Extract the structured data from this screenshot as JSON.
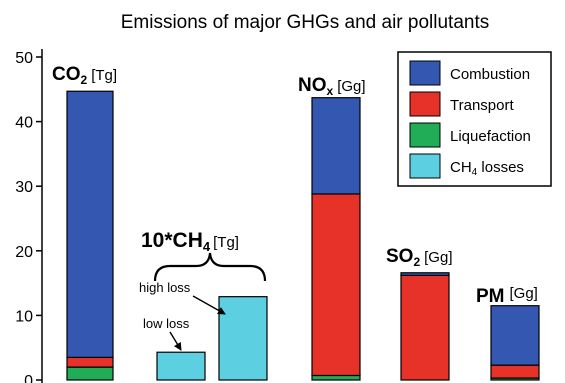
{
  "chart_data": {
    "type": "bar",
    "stacked": true,
    "title": "Emissions of major GHGs and air pollutants",
    "xlabel": "",
    "ylabel": "",
    "ylim": [
      0,
      50
    ],
    "yticks": [
      "0",
      "10",
      "20",
      "30",
      "40",
      "50"
    ],
    "grid": false,
    "legend_position": "top-right",
    "series": [
      {
        "name": "Combustion",
        "color": "#3457b1"
      },
      {
        "name": "Transport",
        "color": "#e63228"
      },
      {
        "name": "Liquefaction",
        "color": "#21ad57"
      },
      {
        "name": "CH4 losses",
        "color": "#5ccfe0"
      }
    ],
    "bars": [
      {
        "id": "co2",
        "segments": [
          {
            "series": "Liquefaction",
            "value": 2.0
          },
          {
            "series": "Transport",
            "value": 1.5
          },
          {
            "series": "Combustion",
            "value": 41.2
          }
        ]
      },
      {
        "id": "ch4-low",
        "segments": [
          {
            "series": "CH4 losses",
            "value": 4.3
          }
        ]
      },
      {
        "id": "ch4-high",
        "segments": [
          {
            "series": "CH4 losses",
            "value": 12.9
          }
        ]
      },
      {
        "id": "nox",
        "segments": [
          {
            "series": "Liquefaction",
            "value": 0.7
          },
          {
            "series": "Transport",
            "value": 28.1
          },
          {
            "series": "Combustion",
            "value": 14.9
          }
        ]
      },
      {
        "id": "so2",
        "segments": [
          {
            "series": "Transport",
            "value": 16.2
          },
          {
            "series": "Combustion",
            "value": 0.4
          }
        ]
      },
      {
        "id": "pm",
        "segments": [
          {
            "series": "Liquefaction",
            "value": 0.3
          },
          {
            "series": "Transport",
            "value": 2.0
          },
          {
            "series": "Combustion",
            "value": 9.2
          }
        ]
      }
    ],
    "group_labels": {
      "co2": {
        "main": "CO",
        "sub": "2",
        "unit": "[Tg]"
      },
      "ch4": {
        "main": "10*CH",
        "sub": "4",
        "unit": "[Tg]"
      },
      "nox": {
        "main": "NO",
        "sub": "x",
        "unit": "[Gg]"
      },
      "so2": {
        "main": "SO",
        "sub": "2",
        "unit": "[Gg]"
      },
      "pm": {
        "main": "PM",
        "sub": "",
        "unit": "[Gg]"
      }
    },
    "annotations": {
      "high_loss": "high loss",
      "low_loss": "low loss"
    },
    "legend": [
      {
        "main": "Combustion",
        "sub": "",
        "rest": ""
      },
      {
        "main": "Transport",
        "sub": "",
        "rest": ""
      },
      {
        "main": "Liquefaction",
        "sub": "",
        "rest": ""
      },
      {
        "main": "CH",
        "sub": "4",
        "rest": " losses"
      }
    ]
  }
}
